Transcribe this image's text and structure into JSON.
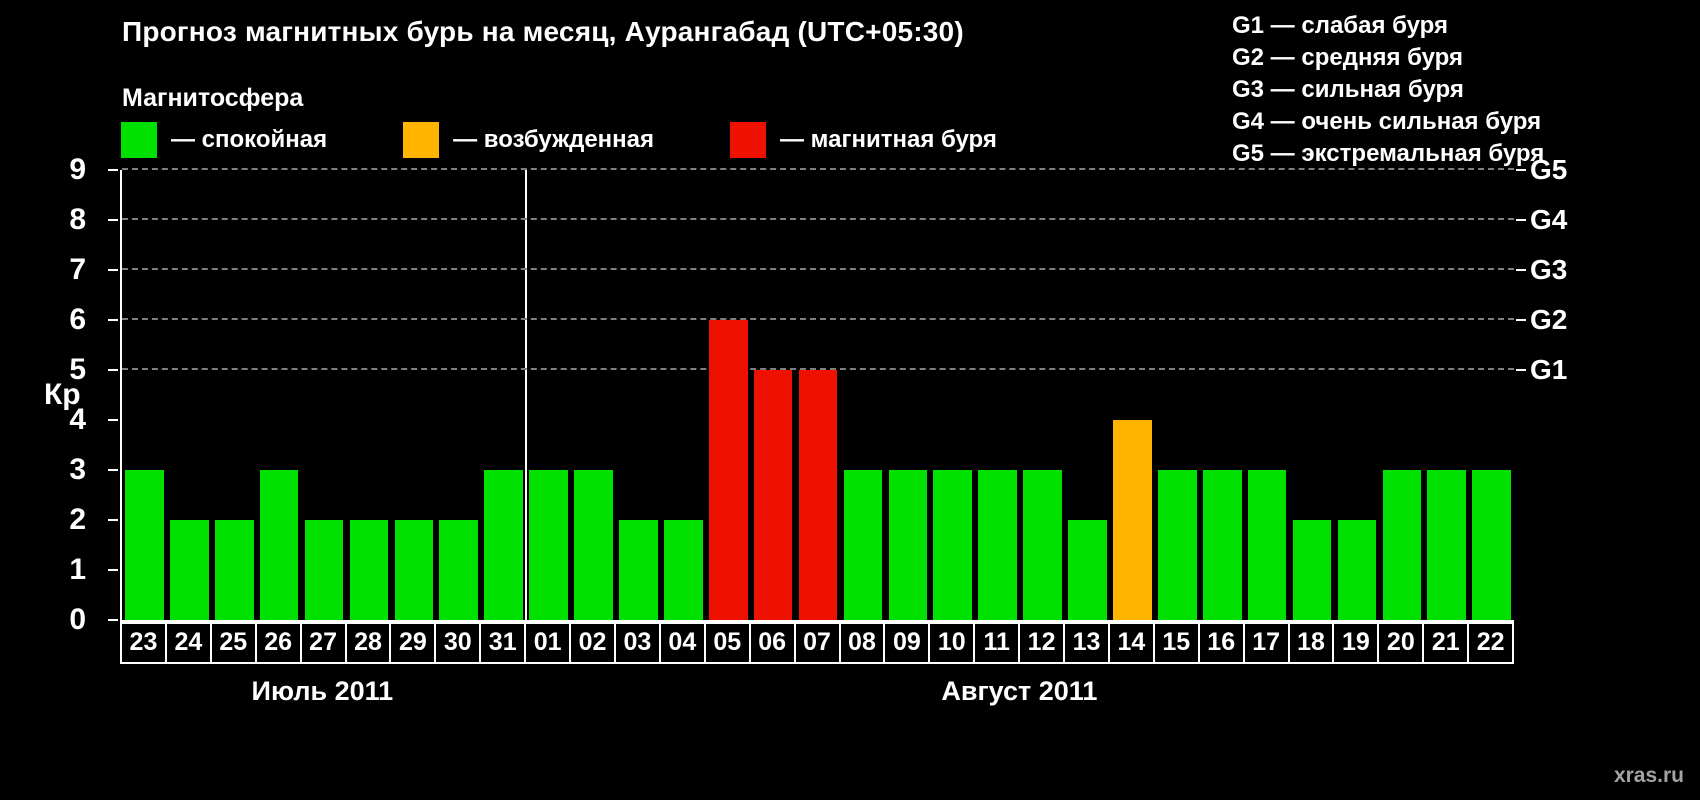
{
  "title": "Прогноз магнитных бурь на месяц, Аурангабад (UTC+05:30)",
  "legend": {
    "heading": "Магнитосфера",
    "items": [
      {
        "name": "quiet",
        "label": "— спокойная",
        "color": "#00e100"
      },
      {
        "name": "excited",
        "label": "— возбужденная",
        "color": "#ffb400"
      },
      {
        "name": "storm",
        "label": "— магнитная буря",
        "color": "#ee1100"
      }
    ]
  },
  "g_legend": [
    {
      "label": "G1 — слабая буря"
    },
    {
      "label": "G2 — средняя буря"
    },
    {
      "label": "G3 — сильная буря"
    },
    {
      "label": "G4 — очень сильная буря"
    },
    {
      "label": "G5 — экстремальная буря"
    }
  ],
  "watermark": "xras.ru",
  "chart_data": {
    "type": "bar",
    "title": "Прогноз магнитных бурь на месяц, Аурангабад (UTC+05:30)",
    "ylabel": "Кр",
    "ylim": [
      0,
      9
    ],
    "yticks": [
      0,
      1,
      2,
      3,
      4,
      5,
      6,
      7,
      8,
      9
    ],
    "gridlines_at_kp": [
      5,
      6,
      7,
      8,
      9
    ],
    "right_axis": [
      {
        "label": "G1",
        "kp": 5
      },
      {
        "label": "G2",
        "kp": 6
      },
      {
        "label": "G3",
        "kp": 7
      },
      {
        "label": "G4",
        "kp": 8
      },
      {
        "label": "G5",
        "kp": 9
      }
    ],
    "months": [
      {
        "label": "Июль 2011",
        "days": 9
      },
      {
        "label": "Август 2011",
        "days": 22
      }
    ],
    "categories": [
      "23",
      "24",
      "25",
      "26",
      "27",
      "28",
      "29",
      "30",
      "31",
      "01",
      "02",
      "03",
      "04",
      "05",
      "06",
      "07",
      "08",
      "09",
      "10",
      "11",
      "12",
      "13",
      "14",
      "15",
      "16",
      "17",
      "18",
      "19",
      "20",
      "21",
      "22"
    ],
    "values": [
      3,
      2,
      2,
      3,
      2,
      2,
      2,
      2,
      3,
      3,
      3,
      2,
      2,
      6,
      5,
      5,
      3,
      3,
      3,
      3,
      3,
      2,
      4,
      3,
      3,
      3,
      2,
      2,
      3,
      3,
      3
    ],
    "statuses": [
      "quiet",
      "quiet",
      "quiet",
      "quiet",
      "quiet",
      "quiet",
      "quiet",
      "quiet",
      "quiet",
      "quiet",
      "quiet",
      "quiet",
      "quiet",
      "storm",
      "storm",
      "storm",
      "quiet",
      "quiet",
      "quiet",
      "quiet",
      "quiet",
      "quiet",
      "excited",
      "quiet",
      "quiet",
      "quiet",
      "quiet",
      "quiet",
      "quiet",
      "quiet",
      "quiet"
    ],
    "status_colors": {
      "quiet": "#00e100",
      "excited": "#ffb400",
      "storm": "#ee1100"
    }
  }
}
